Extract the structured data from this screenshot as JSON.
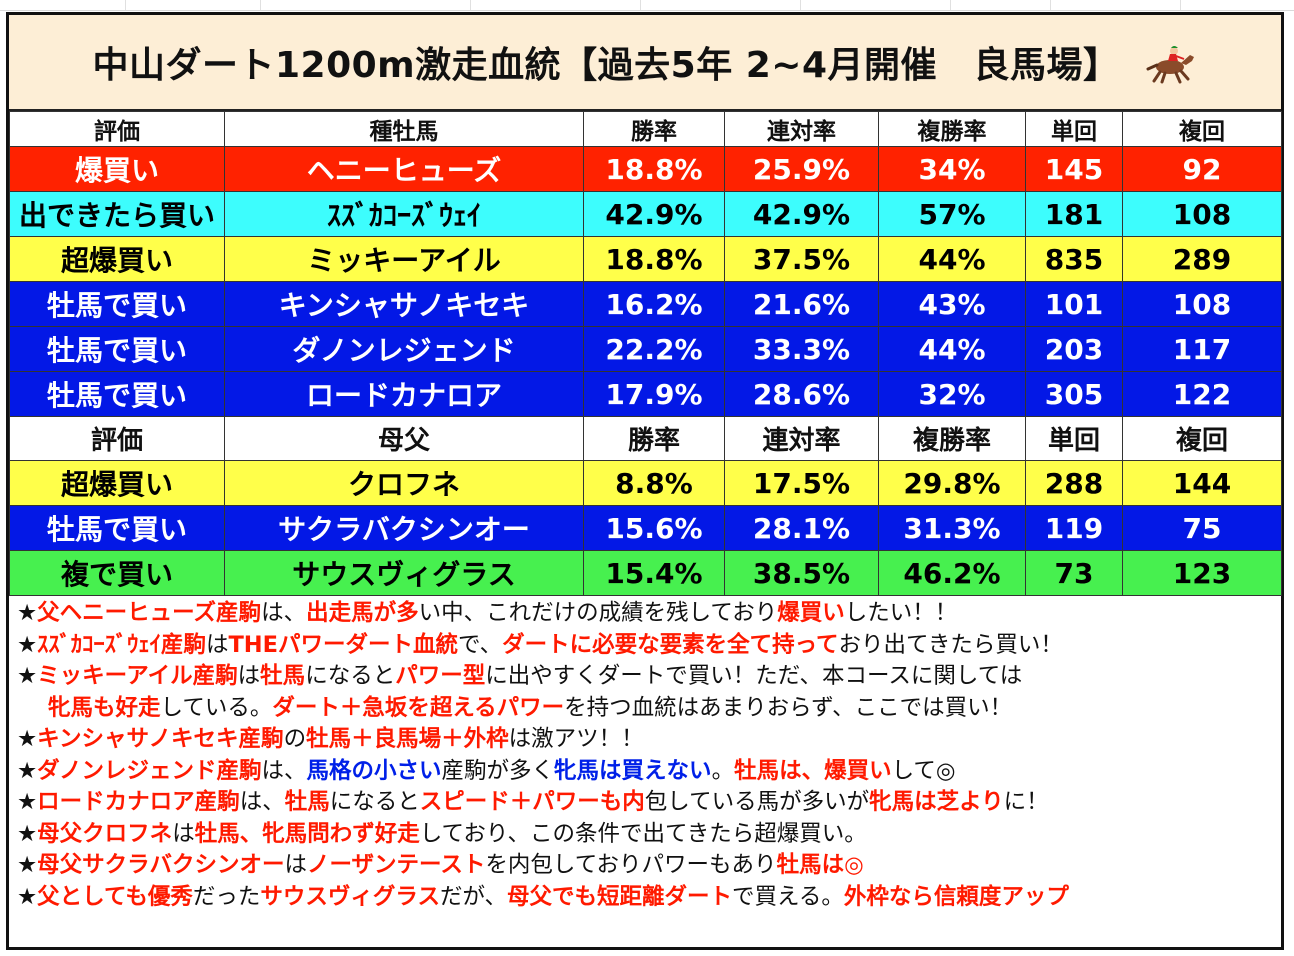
{
  "title": "中山ダート1200m激走血統【過去5年 2~4月開催　良馬場】",
  "sections": [
    {
      "headers": [
        "評価",
        "種牡馬",
        "勝率",
        "連対率",
        "複勝率",
        "単回",
        "複回"
      ],
      "rows": [
        {
          "color": "red",
          "cells": [
            "爆買い",
            "ヘニーヒューズ",
            "18.8%",
            "25.9%",
            "34%",
            "145",
            "92"
          ]
        },
        {
          "color": "cyan",
          "cells": [
            "出できたら買い",
            "ｽｽﾞｶｺｰｽﾞｳｪｲ",
            "42.9%",
            "42.9%",
            "57%",
            "181",
            "108"
          ]
        },
        {
          "color": "yellow",
          "cells": [
            "超爆買い",
            "ミッキーアイル",
            "18.8%",
            "37.5%",
            "44%",
            "835",
            "289"
          ]
        },
        {
          "color": "blue",
          "cells": [
            "牡馬で買い",
            "キンシャサノキセキ",
            "16.2%",
            "21.6%",
            "43%",
            "101",
            "108"
          ]
        },
        {
          "color": "blue",
          "cells": [
            "牡馬で買い",
            "ダノンレジェンド",
            "22.2%",
            "33.3%",
            "44%",
            "203",
            "117"
          ]
        },
        {
          "color": "blue",
          "cells": [
            "牡馬で買い",
            "ロードカナロア",
            "17.9%",
            "28.6%",
            "32%",
            "305",
            "122"
          ]
        }
      ]
    },
    {
      "headers": [
        "評価",
        "母父",
        "勝率",
        "連対率",
        "複勝率",
        "単回",
        "複回"
      ],
      "rows": [
        {
          "color": "yellow",
          "cells": [
            "超爆買い",
            "クロフネ",
            "8.8%",
            "17.5%",
            "29.8%",
            "288",
            "144"
          ]
        },
        {
          "color": "blue",
          "cells": [
            "牡馬で買い",
            "サクラバクシンオー",
            "15.6%",
            "28.1%",
            "31.3%",
            "119",
            "75"
          ]
        },
        {
          "color": "green",
          "cells": [
            "複で買い",
            "サウスヴィグラス",
            "15.4%",
            "38.5%",
            "46.2%",
            "73",
            "123"
          ]
        }
      ]
    }
  ],
  "notes": [
    {
      "indent": false,
      "parts": [
        [
          "k",
          "★"
        ],
        [
          "r",
          "父ヘニーヒューズ産駒"
        ],
        [
          "n",
          "は、"
        ],
        [
          "r",
          "出走馬が多"
        ],
        [
          "n",
          "い中、これだけの成績を残しており"
        ],
        [
          "r",
          "爆買い"
        ],
        [
          "n",
          "したい！！"
        ]
      ]
    },
    {
      "indent": false,
      "parts": [
        [
          "k",
          "★"
        ],
        [
          "r",
          "ｽｽﾞｶｺｰｽﾞｳｪｲ産駒"
        ],
        [
          "n",
          "は"
        ],
        [
          "r",
          "THEパワーダート血統"
        ],
        [
          "n",
          "で、"
        ],
        [
          "r",
          "ダートに必要な要素を全て持って"
        ],
        [
          "n",
          "おり出てきたら買い！"
        ]
      ]
    },
    {
      "indent": false,
      "parts": [
        [
          "k",
          "★"
        ],
        [
          "r",
          "ミッキーアイル産駒"
        ],
        [
          "n",
          "は"
        ],
        [
          "r",
          "牡馬"
        ],
        [
          "n",
          "になると"
        ],
        [
          "r",
          "パワー型"
        ],
        [
          "n",
          "に出やすくダートで買い！ただ、本コースに関しては"
        ]
      ]
    },
    {
      "indent": true,
      "parts": [
        [
          "r",
          "牝馬も好走"
        ],
        [
          "n",
          "している。"
        ],
        [
          "r",
          "ダート＋急坂を超えるパワー"
        ],
        [
          "n",
          "を持つ血統はあまりおらず、ここでは買い！"
        ]
      ]
    },
    {
      "indent": false,
      "parts": [
        [
          "k",
          "★"
        ],
        [
          "r",
          "キンシャサノキセキ産駒"
        ],
        [
          "n",
          "の"
        ],
        [
          "r",
          "牡馬＋良馬場＋外枠"
        ],
        [
          "n",
          "は激アツ！！"
        ]
      ]
    },
    {
      "indent": false,
      "parts": [
        [
          "k",
          "★"
        ],
        [
          "r",
          "ダノンレジェンド産駒"
        ],
        [
          "n",
          "は、"
        ],
        [
          "b",
          "馬格の小さい"
        ],
        [
          "n",
          "産駒が多く"
        ],
        [
          "b",
          "牝馬は買えない"
        ],
        [
          "n",
          "。"
        ],
        [
          "r",
          "牡馬は、爆買い"
        ],
        [
          "n",
          "して◎"
        ]
      ]
    },
    {
      "indent": false,
      "parts": [
        [
          "k",
          "★"
        ],
        [
          "r",
          "ロードカナロア産駒"
        ],
        [
          "n",
          "は、"
        ],
        [
          "r",
          "牡馬"
        ],
        [
          "n",
          "になると"
        ],
        [
          "r",
          "スピード＋パワーも内"
        ],
        [
          "n",
          "包している馬が多いが"
        ],
        [
          "r",
          "牝馬は芝より"
        ],
        [
          "n",
          "に！"
        ]
      ]
    },
    {
      "indent": false,
      "parts": [
        [
          "k",
          "★"
        ],
        [
          "r",
          "母父クロフネ"
        ],
        [
          "n",
          "は"
        ],
        [
          "r",
          "牡馬、牝馬問わず好走"
        ],
        [
          "n",
          "しており、この条件で出てきたら超爆買い。"
        ]
      ]
    },
    {
      "indent": false,
      "parts": [
        [
          "k",
          "★"
        ],
        [
          "r",
          "母父サクラバクシンオー"
        ],
        [
          "n",
          "は"
        ],
        [
          "r",
          "ノーザンテースト"
        ],
        [
          "n",
          "を内包しておりパワーもあり"
        ],
        [
          "r",
          "牡馬は◎"
        ]
      ]
    },
    {
      "indent": false,
      "parts": [
        [
          "k",
          "★"
        ],
        [
          "r",
          "父としても優秀"
        ],
        [
          "n",
          "だった"
        ],
        [
          "r",
          "サウスヴィグラス"
        ],
        [
          "n",
          "だが、"
        ],
        [
          "r",
          "母父でも短距離ダート"
        ],
        [
          "n",
          "で買える。"
        ],
        [
          "r",
          "外枠なら信頼度アップ"
        ]
      ]
    }
  ],
  "colors": {
    "red": "#ff2200",
    "cyan": "#3dfdfd",
    "yellow": "#ffff4a",
    "blue": "#0318e6",
    "green": "#47f04f",
    "title_bg": "#fdeed6",
    "note_red": "#ff1a00",
    "note_blue": "#0020e8"
  },
  "icons": {
    "title": "horse-racing-icon"
  }
}
